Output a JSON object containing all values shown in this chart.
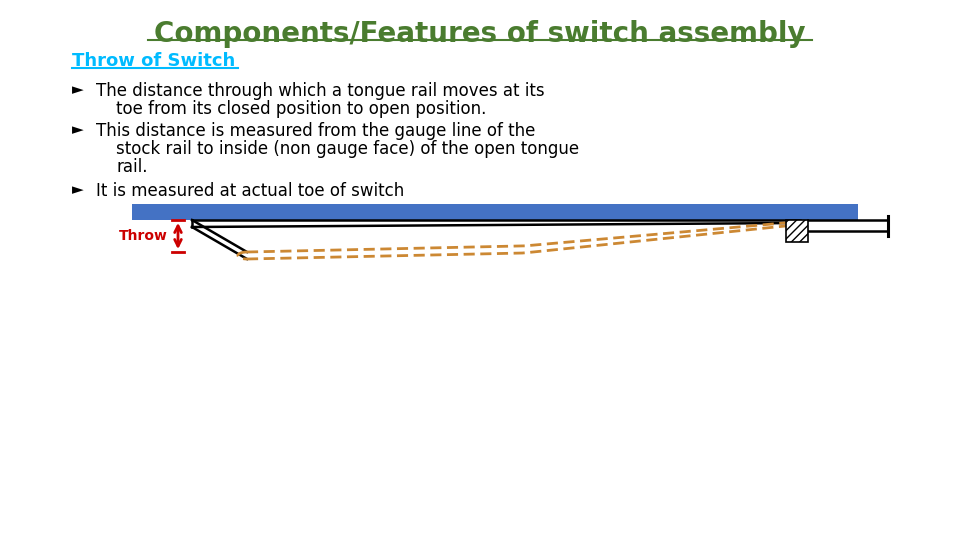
{
  "title": "Components/Features of switch assembly",
  "title_color": "#4a7c2f",
  "title_fontsize": 20,
  "subtitle": "Throw of Switch",
  "subtitle_color": "#00bbff",
  "subtitle_fontsize": 13,
  "bullet_color": "#000000",
  "bullet_fontsize": 12,
  "throw_label": "Throw",
  "throw_label_color": "#cc0000",
  "bg_color": "#ffffff",
  "rail_blue_color": "#4472c4",
  "dashed_color": "#cc8833",
  "arrow_color": "#cc0000",
  "hatch_color": "#000000"
}
